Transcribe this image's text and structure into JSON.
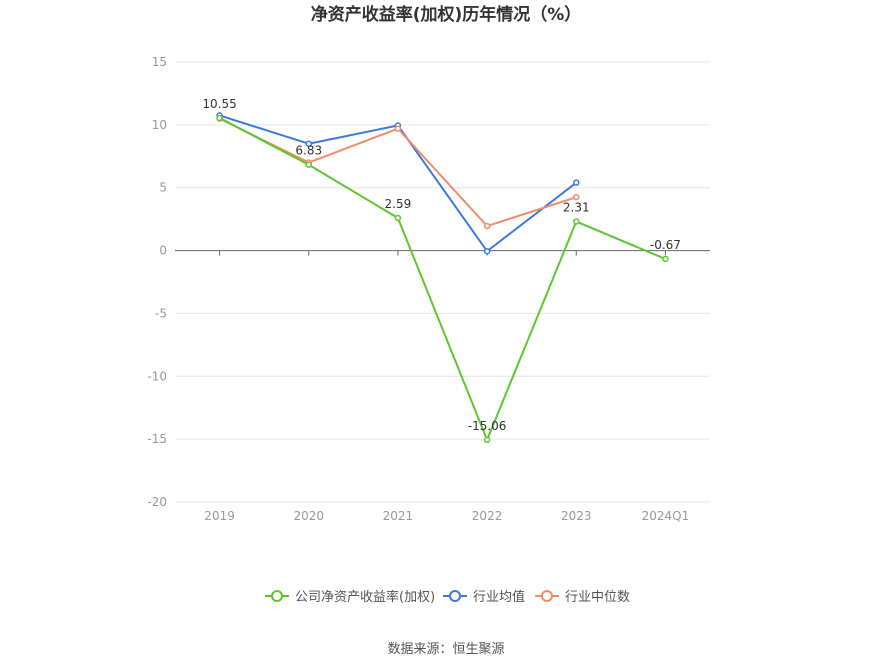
{
  "chart_data": {
    "type": "line",
    "title": "净资产收益率(加权)历年情况（%）",
    "categories": [
      "2019",
      "2020",
      "2021",
      "2022",
      "2023",
      "2024Q1"
    ],
    "ylim": [
      -20,
      15
    ],
    "yticks": [
      15,
      10,
      5,
      0,
      -5,
      -10,
      -15,
      -20
    ],
    "grid": true,
    "legend_position": "bottom",
    "series": [
      {
        "name": "公司净资产收益率(加权)",
        "color": "#5cc72e",
        "values": [
          10.55,
          6.83,
          2.59,
          -15.06,
          2.31,
          -0.67
        ],
        "labels": [
          "10.55",
          "6.83",
          "2.59",
          "-15.06",
          "2.31",
          "-0.67"
        ]
      },
      {
        "name": "行业均值",
        "color": "#3f78e0",
        "values": [
          10.75,
          8.5,
          9.95,
          -0.05,
          5.4,
          null
        ]
      },
      {
        "name": "行业中位数",
        "color": "#f08c6a",
        "values": [
          10.5,
          7.0,
          9.7,
          1.95,
          4.25,
          null
        ]
      }
    ]
  },
  "source": "数据来源：恒生聚源"
}
